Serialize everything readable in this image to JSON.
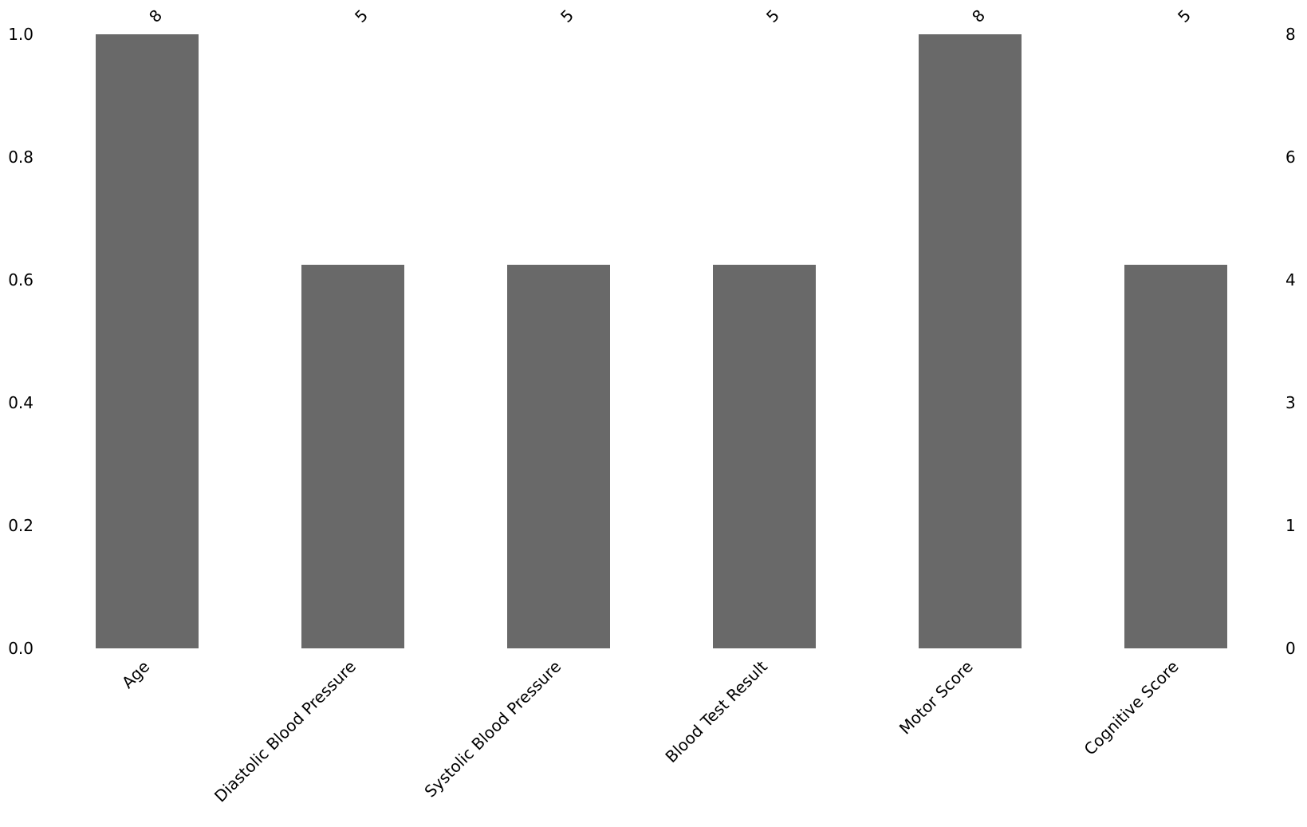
{
  "chart_data": {
    "type": "bar",
    "title": "",
    "xlabel": "",
    "ylabel": "",
    "categories": [
      "Age",
      "Diastolic Blood Pressure",
      "Systolic Blood Pressure",
      "Blood Test Result",
      "Motor Score",
      "Cognitive Score"
    ],
    "values": [
      8,
      5,
      5,
      5,
      8,
      5
    ],
    "bar_value_labels": [
      "8",
      "5",
      "5",
      "5",
      "8",
      "5"
    ],
    "left_axis": {
      "tick_labels": [
        "1.0",
        "0.8",
        "0.6",
        "0.4",
        "0.2",
        "0.0"
      ],
      "range": [
        0.0,
        1.0
      ]
    },
    "right_axis": {
      "tick_labels": [
        "8",
        "6",
        "4",
        "3",
        "1",
        "0"
      ],
      "range": [
        0,
        8
      ]
    },
    "bar_color": "#696969",
    "text_color": "#000000",
    "background_color": "#ffffff",
    "grid": false,
    "legend": false,
    "x_tick_label_rotation_deg": 45,
    "bar_value_label_rotation_deg": 45
  }
}
